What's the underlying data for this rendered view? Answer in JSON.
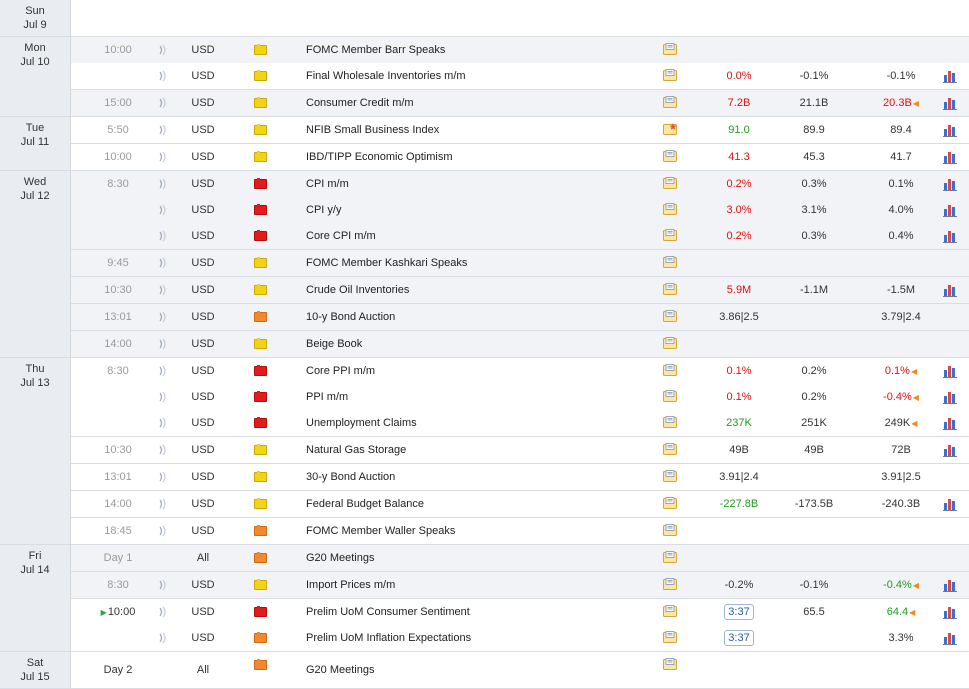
{
  "days": [
    {
      "weekday": "Sun",
      "date": "Jul 9",
      "rows": []
    },
    {
      "weekday": "Mon",
      "date": "Jul 10",
      "rows": [
        {
          "time": "10:00",
          "currency": "USD",
          "impact": "low",
          "event": "FOMC Member Barr Speaks",
          "actual": "",
          "forecast": "",
          "previous": "",
          "actual_color": "",
          "prev_color": "",
          "chart": false,
          "shade": true,
          "sep": false
        },
        {
          "time": "",
          "currency": "USD",
          "impact": "low",
          "event": "Final Wholesale Inventories m/m",
          "actual": "0.0%",
          "forecast": "-0.1%",
          "previous": "-0.1%",
          "actual_color": "red",
          "prev_color": "dark",
          "chart": true,
          "shade": false,
          "sep": false
        },
        {
          "time": "15:00",
          "currency": "USD",
          "impact": "low",
          "event": "Consumer Credit m/m",
          "actual": "7.2B",
          "forecast": "21.1B",
          "previous": "20.3B",
          "actual_color": "red",
          "prev_color": "red",
          "prev_revised": true,
          "chart": true,
          "shade": true,
          "sep": true
        }
      ]
    },
    {
      "weekday": "Tue",
      "date": "Jul 11",
      "rows": [
        {
          "time": "5:50",
          "currency": "USD",
          "impact": "low",
          "event": "NFIB Small Business Index",
          "actual": "91.0",
          "forecast": "89.9",
          "previous": "89.4",
          "actual_color": "green",
          "prev_color": "dark",
          "chart": true,
          "shade": false,
          "sep": false,
          "doc_star": true
        },
        {
          "time": "10:00",
          "currency": "USD",
          "impact": "low",
          "event": "IBD/TIPP Economic Optimism",
          "actual": "41.3",
          "forecast": "45.3",
          "previous": "41.7",
          "actual_color": "red",
          "prev_color": "dark",
          "chart": true,
          "shade": false,
          "sep": true
        }
      ]
    },
    {
      "weekday": "Wed",
      "date": "Jul 12",
      "rows": [
        {
          "time": "8:30",
          "currency": "USD",
          "impact": "high",
          "event": "CPI m/m",
          "actual": "0.2%",
          "forecast": "0.3%",
          "previous": "0.1%",
          "actual_color": "red",
          "prev_color": "dark",
          "chart": true,
          "shade": true,
          "sep": false
        },
        {
          "time": "",
          "currency": "USD",
          "impact": "high",
          "event": "CPI y/y",
          "actual": "3.0%",
          "forecast": "3.1%",
          "previous": "4.0%",
          "actual_color": "red",
          "prev_color": "dark",
          "chart": true,
          "shade": true,
          "sep": false
        },
        {
          "time": "",
          "currency": "USD",
          "impact": "high",
          "event": "Core CPI m/m",
          "actual": "0.2%",
          "forecast": "0.3%",
          "previous": "0.4%",
          "actual_color": "red",
          "prev_color": "dark",
          "chart": true,
          "shade": true,
          "sep": false
        },
        {
          "time": "9:45",
          "currency": "USD",
          "impact": "low",
          "event": "FOMC Member Kashkari Speaks",
          "actual": "",
          "forecast": "",
          "previous": "",
          "actual_color": "",
          "prev_color": "",
          "chart": false,
          "shade": true,
          "sep": true
        },
        {
          "time": "10:30",
          "currency": "USD",
          "impact": "low",
          "event": "Crude Oil Inventories",
          "actual": "5.9M",
          "forecast": "-1.1M",
          "previous": "-1.5M",
          "actual_color": "red",
          "prev_color": "dark",
          "chart": true,
          "shade": true,
          "sep": true
        },
        {
          "time": "13:01",
          "currency": "USD",
          "impact": "med",
          "event": "10-y Bond Auction",
          "actual": "3.86|2.5",
          "forecast": "",
          "previous": "3.79|2.4",
          "actual_color": "dark",
          "prev_color": "dark",
          "chart": false,
          "shade": true,
          "sep": true
        },
        {
          "time": "14:00",
          "currency": "USD",
          "impact": "low",
          "event": "Beige Book",
          "actual": "",
          "forecast": "",
          "previous": "",
          "actual_color": "",
          "prev_color": "",
          "chart": false,
          "shade": true,
          "sep": true
        }
      ]
    },
    {
      "weekday": "Thu",
      "date": "Jul 13",
      "rows": [
        {
          "time": "8:30",
          "currency": "USD",
          "impact": "high",
          "event": "Core PPI m/m",
          "actual": "0.1%",
          "forecast": "0.2%",
          "previous": "0.1%",
          "actual_color": "red",
          "prev_color": "red",
          "prev_revised": true,
          "chart": true,
          "shade": false,
          "sep": false
        },
        {
          "time": "",
          "currency": "USD",
          "impact": "high",
          "event": "PPI m/m",
          "actual": "0.1%",
          "forecast": "0.2%",
          "previous": "-0.4%",
          "actual_color": "red",
          "prev_color": "red",
          "prev_revised": true,
          "chart": true,
          "shade": false,
          "sep": false
        },
        {
          "time": "",
          "currency": "USD",
          "impact": "high",
          "event": "Unemployment Claims",
          "actual": "237K",
          "forecast": "251K",
          "previous": "249K",
          "actual_color": "green",
          "prev_color": "dark",
          "prev_revised": true,
          "chart": true,
          "shade": false,
          "sep": false
        },
        {
          "time": "10:30",
          "currency": "USD",
          "impact": "low",
          "event": "Natural Gas Storage",
          "actual": "49B",
          "forecast": "49B",
          "previous": "72B",
          "actual_color": "dark",
          "prev_color": "dark",
          "chart": true,
          "shade": false,
          "sep": true
        },
        {
          "time": "13:01",
          "currency": "USD",
          "impact": "low",
          "event": "30-y Bond Auction",
          "actual": "3.91|2.4",
          "forecast": "",
          "previous": "3.91|2.5",
          "actual_color": "dark",
          "prev_color": "dark",
          "chart": false,
          "shade": false,
          "sep": true
        },
        {
          "time": "14:00",
          "currency": "USD",
          "impact": "low",
          "event": "Federal Budget Balance",
          "actual": "-227.8B",
          "forecast": "-173.5B",
          "previous": "-240.3B",
          "actual_color": "green",
          "prev_color": "dark",
          "chart": true,
          "shade": false,
          "sep": true
        },
        {
          "time": "18:45",
          "currency": "USD",
          "impact": "med",
          "event": "FOMC Member Waller Speaks",
          "actual": "",
          "forecast": "",
          "previous": "",
          "actual_color": "",
          "prev_color": "",
          "chart": false,
          "shade": false,
          "sep": true
        }
      ]
    },
    {
      "weekday": "Fri",
      "date": "Jul 14",
      "rows": [
        {
          "time": "Day 1",
          "currency": "All",
          "impact": "med",
          "event": "G20 Meetings",
          "actual": "",
          "forecast": "",
          "previous": "",
          "actual_color": "",
          "prev_color": "",
          "chart": false,
          "shade": true,
          "sep": false,
          "no_vol": true
        },
        {
          "time": "8:30",
          "currency": "USD",
          "impact": "low",
          "event": "Import Prices m/m",
          "actual": "-0.2%",
          "forecast": "-0.1%",
          "previous": "-0.4%",
          "actual_color": "dark",
          "prev_color": "green",
          "prev_revised": true,
          "chart": true,
          "shade": true,
          "sep": true
        },
        {
          "time": "10:00",
          "live": true,
          "currency": "USD",
          "impact": "high",
          "event": "Prelim UoM Consumer Sentiment",
          "actual": "3:37",
          "actual_countdown": true,
          "forecast": "65.5",
          "previous": "64.4",
          "actual_color": "",
          "prev_color": "green",
          "prev_revised": true,
          "chart": true,
          "shade": false,
          "sep": true
        },
        {
          "time": "",
          "currency": "USD",
          "impact": "med",
          "event": "Prelim UoM Inflation Expectations",
          "actual": "3:37",
          "actual_countdown": true,
          "forecast": "",
          "previous": "3.3%",
          "actual_color": "",
          "prev_color": "dark",
          "chart": true,
          "shade": false,
          "sep": false
        }
      ]
    },
    {
      "weekday": "Sat",
      "date": "Jul 15",
      "rows": [
        {
          "time": "Day 2",
          "currency": "All",
          "impact": "med",
          "event": "G20 Meetings",
          "actual": "",
          "forecast": "",
          "previous": "",
          "actual_color": "",
          "prev_color": "",
          "chart": false,
          "shade": false,
          "sep": false,
          "no_vol": true,
          "dark_time": true
        }
      ]
    }
  ]
}
